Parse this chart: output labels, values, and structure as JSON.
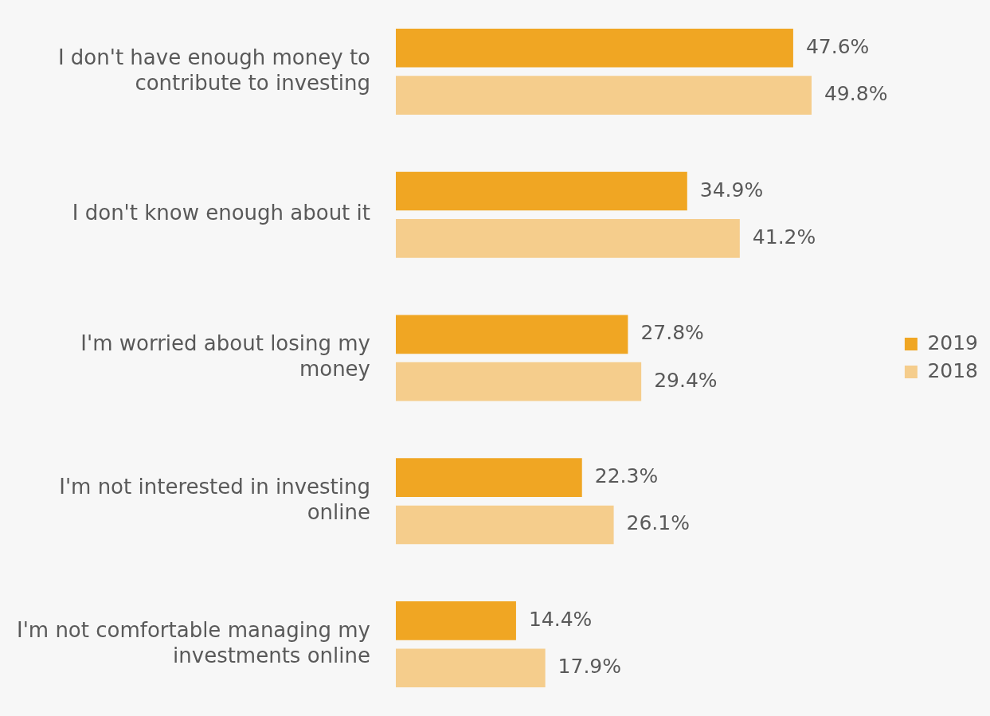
{
  "chart_data": {
    "type": "bar",
    "orientation": "horizontal",
    "legend": "right",
    "categories": [
      "I don't have enough money to contribute to investing",
      "I don't know enough about it",
      "I'm worried about losing my money",
      "I'm not interested in investing online",
      "I'm not comfortable managing my investments online"
    ],
    "series": [
      {
        "name": "2019",
        "color": "#f0a623",
        "values": [
          47.6,
          34.9,
          27.8,
          22.3,
          14.4
        ],
        "value_labels": [
          "47.6%",
          "34.9%",
          "27.8%",
          "22.3%",
          "14.4%"
        ]
      },
      {
        "name": "2018",
        "color": "#f5cd8c",
        "values": [
          49.8,
          41.2,
          29.4,
          26.1,
          17.9
        ],
        "value_labels": [
          "49.8%",
          "41.2%",
          "29.4%",
          "26.1%",
          "17.9%"
        ]
      }
    ]
  }
}
